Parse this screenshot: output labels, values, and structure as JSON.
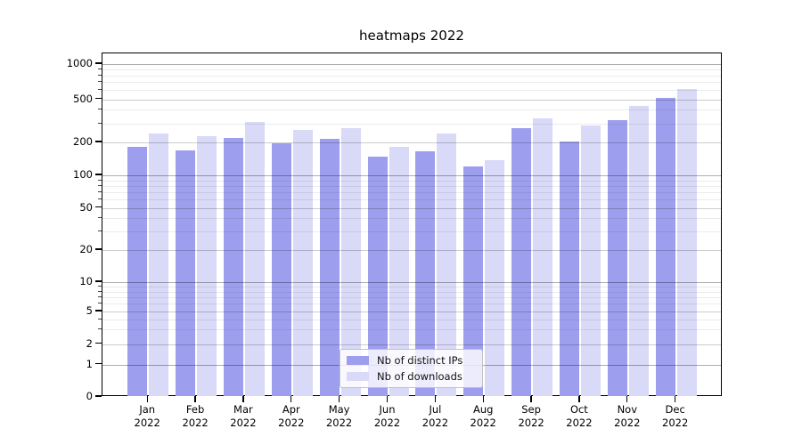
{
  "title": "heatmaps 2022",
  "chart_data": {
    "type": "bar",
    "title": "heatmaps 2022",
    "categories": [
      "Jan 2022",
      "Feb 2022",
      "Mar 2022",
      "Apr 2022",
      "May 2022",
      "Jun 2022",
      "Jul 2022",
      "Aug 2022",
      "Sep 2022",
      "Oct 2022",
      "Nov 2022",
      "Dec 2022"
    ],
    "series": [
      {
        "name": "Nb of distinct IPs",
        "color": "#9e9eef",
        "values": [
          182,
          169,
          220,
          196,
          216,
          148,
          166,
          121,
          273,
          205,
          320,
          515
        ]
      },
      {
        "name": "Nb of downloads",
        "color": "#d9d9f8",
        "values": [
          242,
          229,
          310,
          263,
          273,
          183,
          240,
          137,
          333,
          288,
          435,
          610
        ]
      }
    ],
    "xlabel": "",
    "ylabel": "",
    "yscale": "symlog",
    "yticks": [
      0,
      1,
      2,
      5,
      10,
      20,
      50,
      100,
      200,
      500,
      1000
    ],
    "ylim": [
      0,
      1250
    ],
    "grid": "both",
    "legend_location": "lower center"
  }
}
